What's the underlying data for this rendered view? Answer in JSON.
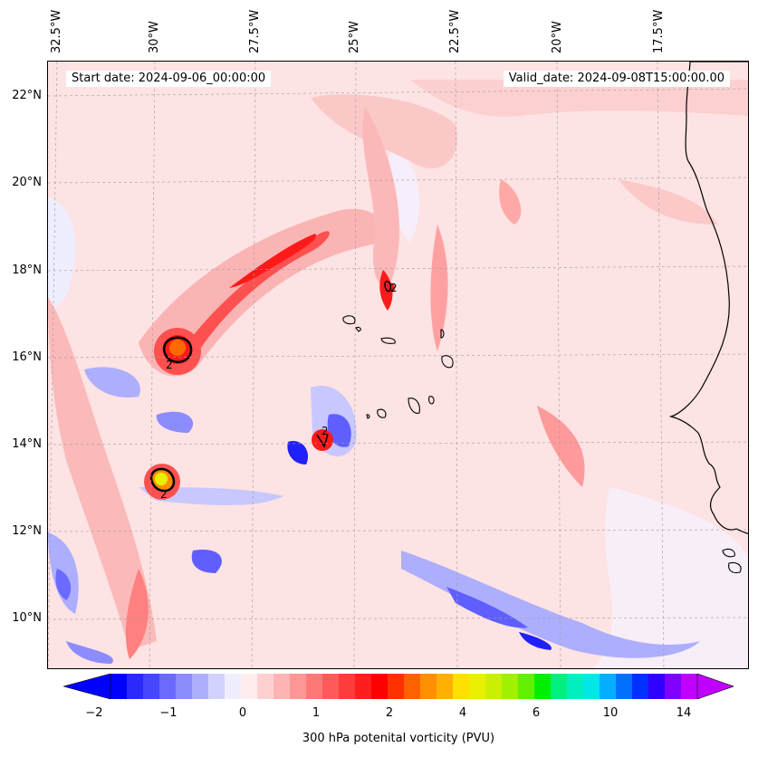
{
  "map": {
    "start_date": "Start date: 2024-09-06_00:00:00",
    "valid_date": "Valid_date: 2024-09-08T15:00:00.00",
    "lon_labels": [
      "32.5°W",
      "30°W",
      "27.5°W",
      "25°W",
      "22.5°W",
      "20°W",
      "17.5°W"
    ],
    "lat_labels": [
      "22°N",
      "20°N",
      "18°N",
      "16°N",
      "14°N",
      "12°N",
      "10°N"
    ],
    "contour_labels": [
      "2",
      "2",
      "2",
      "2"
    ],
    "colors": {
      "background": "#fde3e3",
      "light_red": "#fbb4b4",
      "red": "#ff5050",
      "strong_red": "#ff1a1a",
      "blue_light": "#c8c8ff",
      "blue": "#5f5fff",
      "blue_dark": "#2020ff",
      "orange": "#ff6a00",
      "yellow": "#e6f000",
      "land_line": "#000000"
    }
  },
  "colorbar": {
    "title": "300 hPa potenital vorticity (PVU)",
    "tick_labels": [
      "−2",
      "−1",
      "0",
      "1",
      "2",
      "4",
      "6",
      "10",
      "14"
    ],
    "colors": [
      "#0000ff",
      "#2a2aff",
      "#4646ff",
      "#6a6aff",
      "#8c8cff",
      "#aeaeff",
      "#d2d2ff",
      "#eeeeff",
      "#ffeded",
      "#ffd0d0",
      "#ffb4b4",
      "#ff9696",
      "#ff7878",
      "#ff5a5a",
      "#ff3c3c",
      "#ff1e1e",
      "#ff0000",
      "#ff3000",
      "#ff6000",
      "#ff9000",
      "#ffb000",
      "#ffe000",
      "#e8f000",
      "#c8f000",
      "#a0f000",
      "#60f000",
      "#00f000",
      "#00f080",
      "#00f0c0",
      "#00e8e8",
      "#00b0ff",
      "#0070ff",
      "#0030ff",
      "#3000ff",
      "#8000ff",
      "#c000ff"
    ]
  }
}
